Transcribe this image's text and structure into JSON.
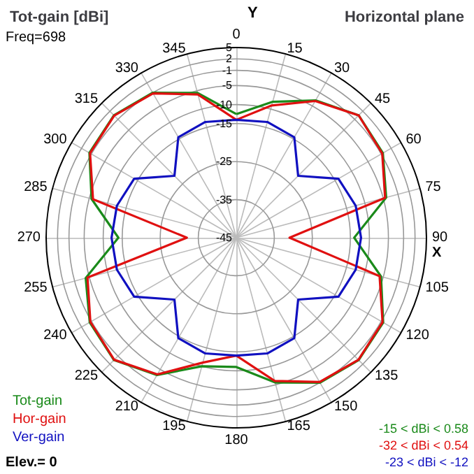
{
  "chart_data": {
    "type": "radar",
    "title": "Tot-gain [dBi]",
    "subtitle": "Horizontal plane",
    "xlabel": "X",
    "ylabel": "Y",
    "annotations": [
      "-15 < dBi < 0.58",
      "-32 < dBi < 0.54",
      "-23 < dBi < -12",
      "Freq=698",
      "Elev.= 0"
    ],
    "categories": [
      "0",
      "15",
      "30",
      "45",
      "60",
      "75",
      "90",
      "105",
      "120",
      "135",
      "150",
      "165",
      "180",
      "195",
      "210",
      "225",
      "240",
      "255",
      "270",
      "285",
      "300",
      "315",
      "330",
      "345"
    ],
    "ylim": [
      -45,
      5
    ],
    "yticks": [
      5,
      2,
      -1,
      -5,
      -10,
      -15,
      -25,
      -35,
      -45
    ],
    "grid": true,
    "legend": "bottom left",
    "marker": "none",
    "line_style": "solid",
    "series": [
      {
        "name": "Tot-gain",
        "color": "#1a8a1a",
        "values": [
          -12.5,
          -8,
          -3.3,
          0.5,
          -0.5,
          -4.2,
          -14,
          -5.6,
          -0.4,
          0.5,
          -1,
          -5.6,
          -11,
          -10,
          -3.3,
          0.5,
          -0.5,
          -4,
          -14,
          -5.6,
          -0.4,
          0.5,
          -1,
          -5.6
        ]
      },
      {
        "name": "Hor-gain",
        "color": "#e01010",
        "values": [
          -14,
          -9,
          -3.5,
          0.5,
          -0.7,
          -4.5,
          -31,
          -6,
          -0.6,
          0.4,
          -1.2,
          -6,
          -14,
          -11,
          -3.5,
          0.4,
          -0.7,
          -4.5,
          -32,
          -6,
          -0.6,
          0.4,
          -1.2,
          -6
        ]
      },
      {
        "name": "Ver-gain",
        "color": "#1010c0",
        "values": [
          -14,
          -13.5,
          -14.5,
          -22,
          -14,
          -12.5,
          -12.2,
          -12.5,
          -14,
          -22,
          -14.5,
          -13.5,
          -14,
          -13.5,
          -14.5,
          -22,
          -14,
          -12.5,
          -12.2,
          -12.5,
          -14,
          -22,
          -14.5,
          -13.5
        ]
      }
    ]
  }
}
